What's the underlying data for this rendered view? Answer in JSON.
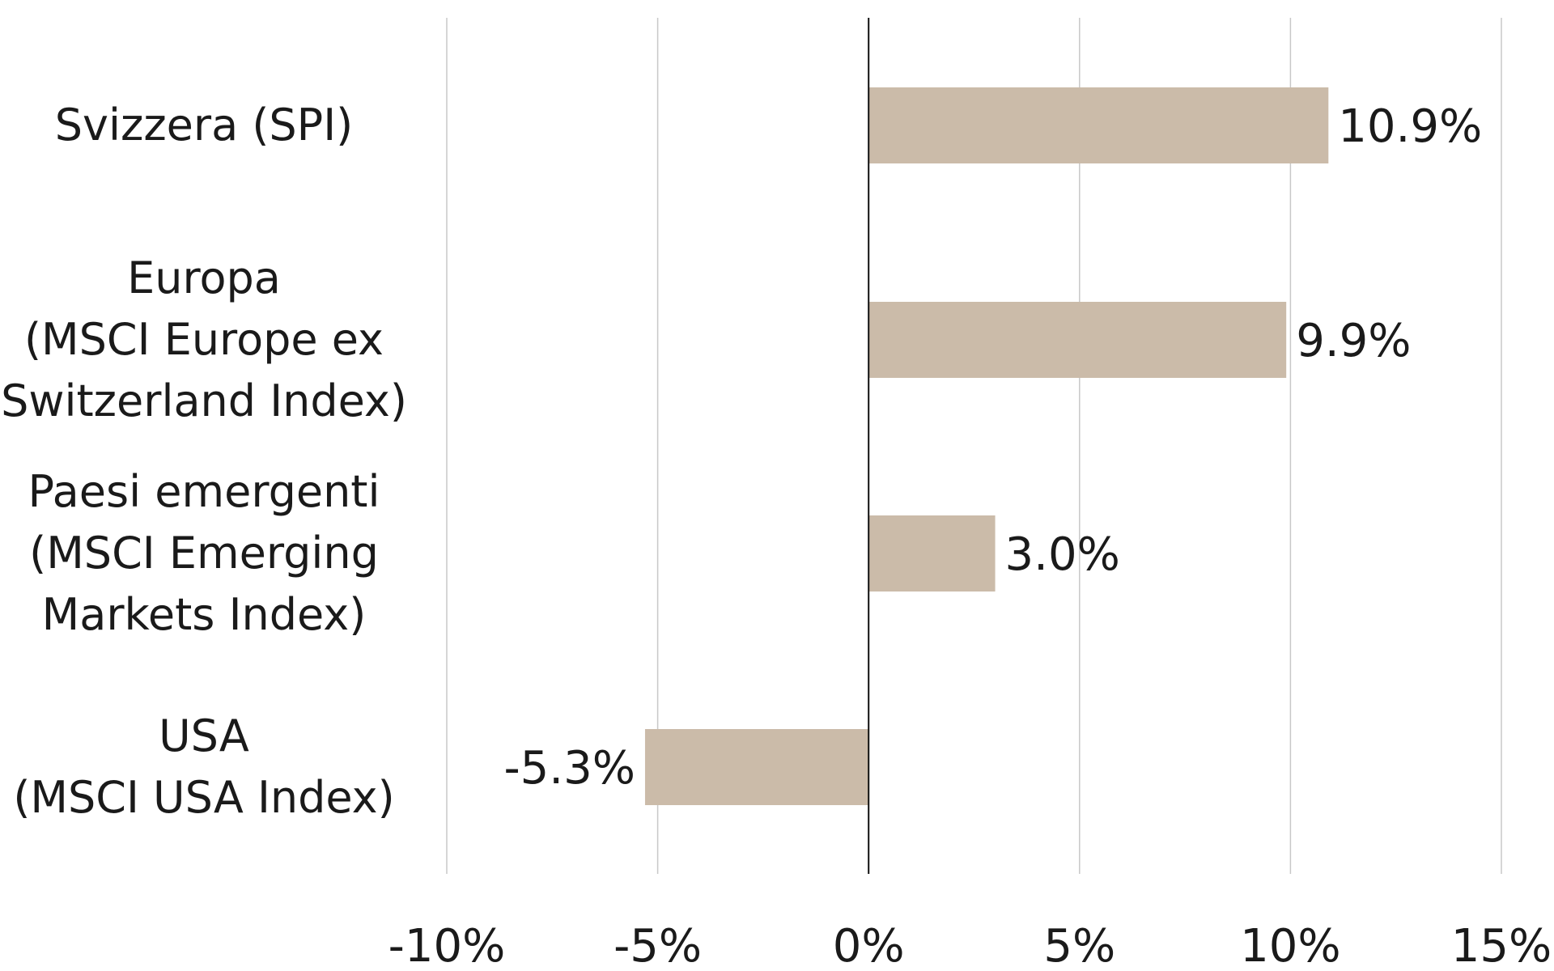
{
  "chart_data": {
    "type": "bar",
    "orientation": "horizontal",
    "title": "",
    "xlabel": "",
    "ylabel": "",
    "categories": [
      [
        "Svizzera (SPI)"
      ],
      [
        "Europa",
        "(MSCI Europe ex",
        "Switzerland Index)"
      ],
      [
        "Paesi emergenti",
        "(MSCI Emerging",
        "Markets Index)"
      ],
      [
        "USA",
        "(MSCI USA Index)"
      ]
    ],
    "values": [
      10.9,
      9.9,
      3.0,
      -5.3
    ],
    "data_labels": [
      "10.9%",
      "9.9%",
      "3.0%",
      "-5.3%"
    ],
    "xlim": [
      -10,
      15
    ],
    "xticks": [
      -10,
      -5,
      0,
      5,
      10,
      15
    ],
    "xtick_labels": [
      "-10%",
      "-5%",
      "0%",
      "5%",
      "10%",
      "15%"
    ],
    "grid": "vertical",
    "legend": "none",
    "bar_color": "#cbbba9",
    "zero_line_color": "#111111"
  }
}
